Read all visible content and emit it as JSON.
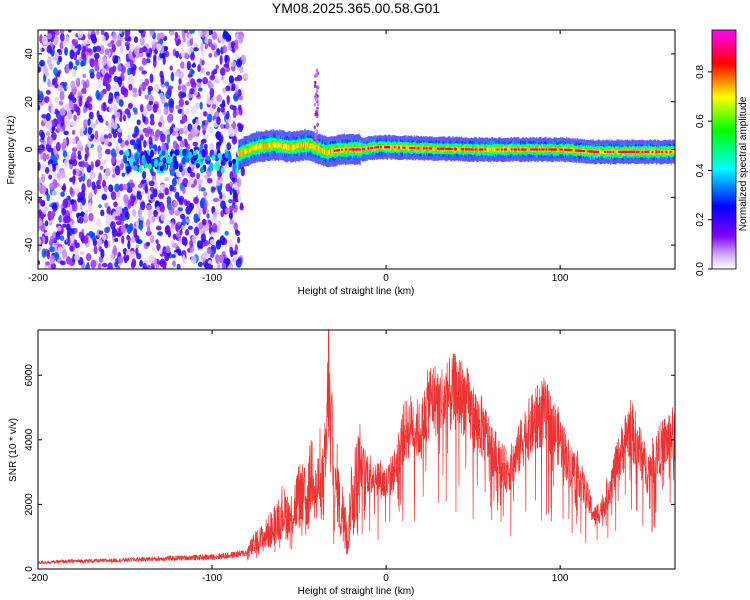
{
  "title": "YM08.2025.365.00.58.G01",
  "chart_data": [
    {
      "type": "heatmap",
      "xlabel": "Height of straight line (km)",
      "ylabel": "Frequency (Hz)",
      "xlim": [
        -200,
        166
      ],
      "ylim": [
        -50,
        50
      ],
      "xticks": [
        -200,
        -100,
        0,
        100
      ],
      "yticks": [
        -40,
        -20,
        0,
        20,
        40
      ],
      "colorbar": {
        "label": "Normalized spectral amplitude",
        "range": [
          0,
          0.97
        ],
        "ticks": [
          "0.0",
          "0.2",
          "0.4",
          "0.6",
          "0.8"
        ]
      },
      "colormap": [
        "#ffffff",
        "#7f00ff",
        "#0000ff",
        "#00ffff",
        "#00ff00",
        "#ffff00",
        "#ff0000",
        "#ff00ff"
      ],
      "features": [
        {
          "x_range": [
            -200,
            -85
          ],
          "frequency_range": [
            -50,
            50
          ],
          "amplitude": [
            0.0,
            0.3
          ],
          "pattern": "scattered noise"
        },
        {
          "x_range": [
            -150,
            -85
          ],
          "frequency_center": -5,
          "amplitude": [
            0.2,
            0.5
          ],
          "pattern": "weak trace"
        },
        {
          "x_range": [
            -85,
            166
          ],
          "frequency_center": 0,
          "amplitude": [
            0.4,
            0.97
          ],
          "pattern": "strong trace"
        }
      ],
      "ridge": {
        "x": [
          -85,
          -75,
          -65,
          -55,
          -45,
          -35,
          -25,
          -15,
          -5,
          0,
          20,
          50,
          80,
          100,
          120,
          140,
          166
        ],
        "frequency": [
          -2,
          1,
          2,
          1,
          2,
          -1,
          0,
          0,
          1,
          1,
          0.5,
          0,
          0,
          0,
          -1,
          -1,
          -1
        ]
      }
    },
    {
      "type": "line",
      "xlabel": "Height of straight line (km)",
      "ylabel": "SNR (10 * v/v)",
      "xlim": [
        -200,
        166
      ],
      "ylim": [
        0,
        7400
      ],
      "xticks": [
        -200,
        -100,
        0,
        100
      ],
      "yticks": [
        0,
        2000,
        4000,
        6000
      ],
      "color": "#ee3333",
      "series": [
        {
          "x": [
            -200,
            -180,
            -160,
            -140,
            -120,
            -100,
            -90,
            -80,
            -75,
            -70,
            -65,
            -60,
            -55,
            -50,
            -45,
            -42,
            -40,
            -38,
            -36,
            -34,
            -33,
            -32,
            -31,
            -30,
            -28,
            -26,
            -24,
            -22,
            -20,
            -18,
            -15,
            -10,
            -5,
            0,
            5,
            10,
            15,
            20,
            25,
            30,
            35,
            40,
            45,
            50,
            55,
            60,
            65,
            70,
            75,
            80,
            85,
            90,
            95,
            100,
            105,
            110,
            115,
            120,
            125,
            130,
            135,
            140,
            145,
            150,
            155,
            160,
            166
          ],
          "y": [
            200,
            240,
            260,
            300,
            340,
            370,
            420,
            500,
            800,
            1000,
            1300,
            1800,
            1600,
            2300,
            2100,
            3500,
            2200,
            3000,
            2500,
            4000,
            7000,
            3500,
            4700,
            2000,
            2700,
            1500,
            2200,
            700,
            2400,
            2600,
            3200,
            3000,
            2900,
            2600,
            3100,
            4200,
            4500,
            4200,
            5300,
            5200,
            5300,
            5500,
            5300,
            4700,
            4400,
            3800,
            3300,
            3000,
            3500,
            4200,
            4500,
            4900,
            4500,
            4000,
            3300,
            3000,
            2300,
            1600,
            2000,
            2800,
            3600,
            4400,
            3800,
            3000,
            3500,
            3900,
            4200
          ]
        }
      ]
    }
  ]
}
